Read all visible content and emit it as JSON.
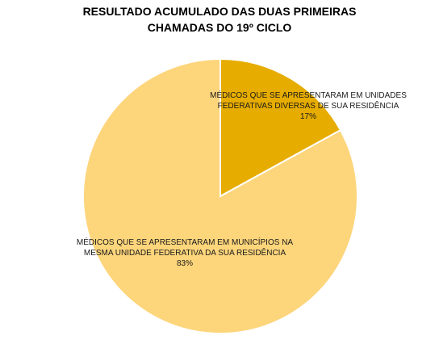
{
  "chart_data": {
    "type": "pie",
    "title_lines": [
      "RESULTADO ACUMULADO DAS DUAS PRIMEIRAS",
      "CHAMADAS DO 19º CICLO"
    ],
    "slices": [
      {
        "label_lines": [
          "MÉDICOS QUE SE APRESENTARAM EM UNIDADES",
          "FEDERATIVAS DIVERSAS DE SUA RESIDÊNCIA"
        ],
        "percent_label": "17%",
        "value": 17,
        "color": "#E6AC00"
      },
      {
        "label_lines": [
          "MÉDICOS QUE SE APRESENTARAM EM MUNICÍPIOS NA",
          "MESMA UNIDADE FEDERATIVA DA SUA RESIDÊNCIA"
        ],
        "percent_label": "83%",
        "value": 83,
        "color": "#FDD57B"
      }
    ],
    "start_angle_deg": 0,
    "direction": "clockwise",
    "legend": "none"
  }
}
